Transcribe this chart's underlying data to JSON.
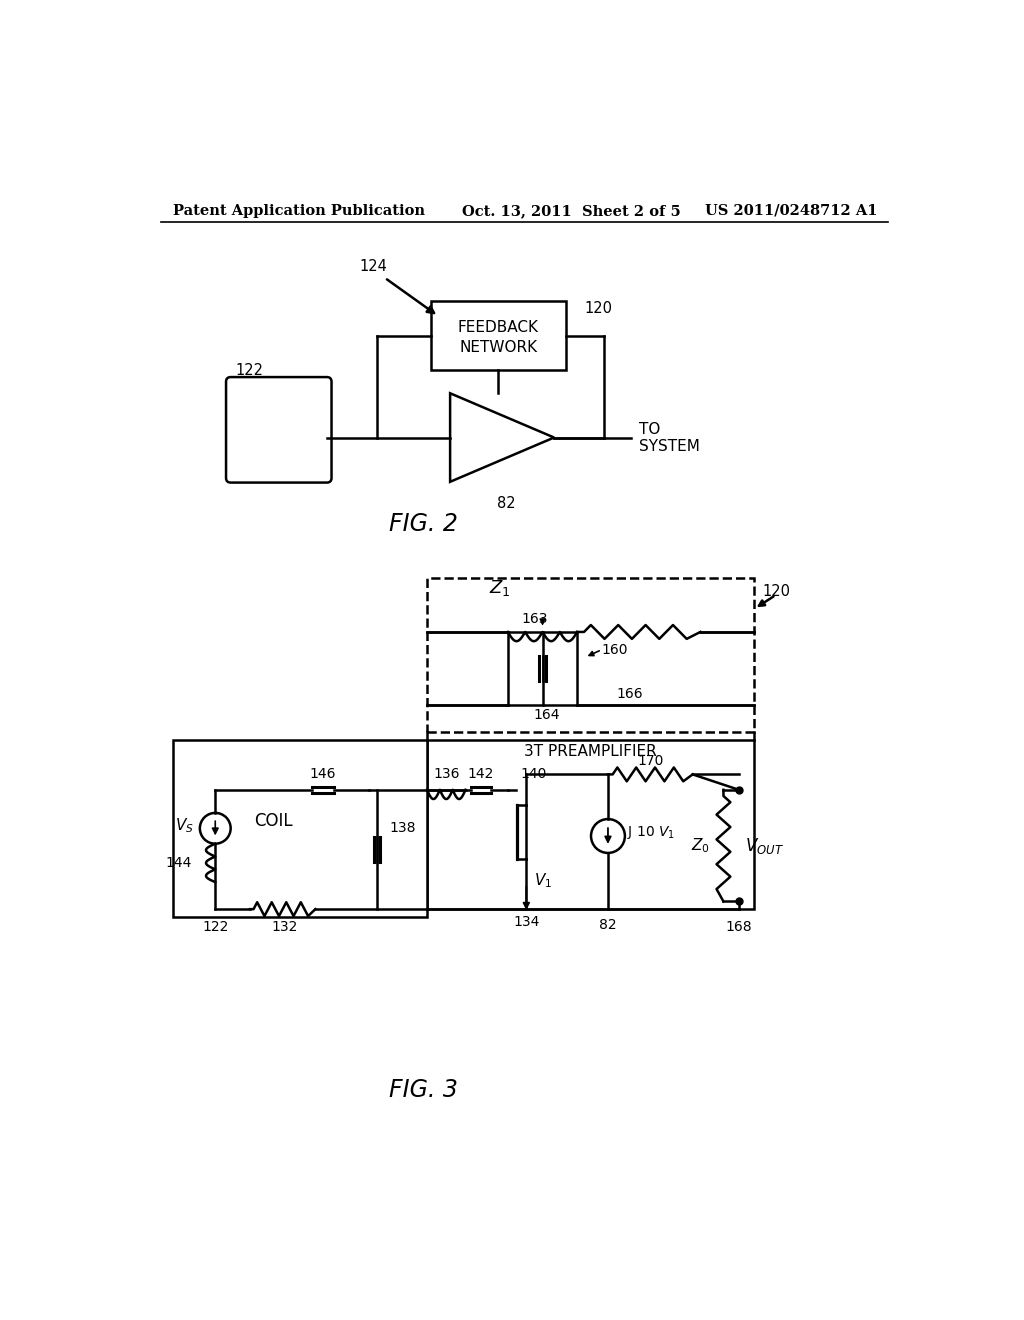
{
  "bg_color": "#ffffff",
  "header_left": "Patent Application Publication",
  "header_center": "Oct. 13, 2011  Sheet 2 of 5",
  "header_right": "US 2011/0248712 A1",
  "line_color": "#000000"
}
